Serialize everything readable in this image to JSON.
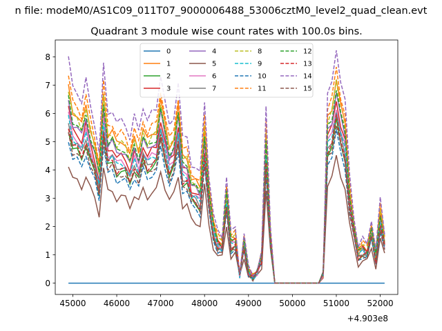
{
  "figure": {
    "suptitle": "n file: modeM0/AS1C09_011T07_9000006488_53006cztM0_level2_quad_clean.evt",
    "title": "Quadrant 3 module wise count rates with 100.0s bins."
  },
  "chart_data": {
    "type": "line",
    "title": "Quadrant 3 module wise count rates with 100.0s bins.",
    "xlabel": "",
    "ylabel": "",
    "x_offset_label": "+4.903e8",
    "xlim": [
      44600,
      52400
    ],
    "ylim": [
      -0.4,
      8.6
    ],
    "xticks": [
      45000,
      46000,
      47000,
      48000,
      49000,
      50000,
      51000,
      52000
    ],
    "yticks": [
      0,
      1,
      2,
      3,
      4,
      5,
      6,
      7,
      8
    ],
    "grid": false,
    "legend": {
      "position": "top-center",
      "columns": 4
    },
    "x": [
      44900,
      45000,
      45100,
      45200,
      45300,
      45400,
      45500,
      45600,
      45700,
      45800,
      45900,
      46000,
      46100,
      46200,
      46300,
      46400,
      46500,
      46600,
      46700,
      46800,
      46900,
      47000,
      47100,
      47200,
      47300,
      47400,
      47500,
      47600,
      47700,
      47800,
      47900,
      48000,
      48100,
      48200,
      48300,
      48400,
      48500,
      48600,
      48700,
      48800,
      48900,
      49000,
      49100,
      49200,
      49300,
      49400,
      49500,
      49600,
      49700,
      49800,
      49900,
      50000,
      50100,
      50200,
      50300,
      50400,
      50500,
      50600,
      50700,
      50800,
      50900,
      51000,
      51100,
      51200,
      51300,
      51400,
      51500,
      51600,
      51700,
      51800,
      51900,
      52000,
      52100
    ],
    "base_profile": [
      6.2,
      5.4,
      5.3,
      5.0,
      5.6,
      4.9,
      4.4,
      3.6,
      6.0,
      4.7,
      4.8,
      4.4,
      4.5,
      4.4,
      4.0,
      4.6,
      4.2,
      4.9,
      4.5,
      4.7,
      4.8,
      5.8,
      5.0,
      4.3,
      4.6,
      5.6,
      4.0,
      4.0,
      3.3,
      3.2,
      3.0,
      5.0,
      3.0,
      1.9,
      1.4,
      1.3,
      3.0,
      1.4,
      1.5,
      0.3,
      1.4,
      0.4,
      0.2,
      0.4,
      0.9,
      4.8,
      1.6,
      0.0,
      0.0,
      0.0,
      0.0,
      0.0,
      0.0,
      0.0,
      0.0,
      0.0,
      0.0,
      0.0,
      0.3,
      5.2,
      5.5,
      6.5,
      5.6,
      5.0,
      3.0,
      1.9,
      1.0,
      1.2,
      1.1,
      1.8,
      0.9,
      2.3,
      1.4
    ],
    "series": [
      {
        "name": "0",
        "color": "#1f77b4",
        "dash": "solid",
        "scale": 0.0
      },
      {
        "name": "1",
        "color": "#ff7f0e",
        "dash": "solid",
        "scale": 1.12
      },
      {
        "name": "2",
        "color": "#2ca02c",
        "dash": "solid",
        "scale": 0.88
      },
      {
        "name": "3",
        "color": "#d62728",
        "dash": "solid",
        "scale": 1.0
      },
      {
        "name": "4",
        "color": "#9467bd",
        "dash": "solid",
        "scale": 1.04
      },
      {
        "name": "5",
        "color": "#8c564b",
        "dash": "solid",
        "scale": 0.68
      },
      {
        "name": "6",
        "color": "#e377c2",
        "dash": "solid",
        "scale": 0.96
      },
      {
        "name": "7",
        "color": "#7f7f7f",
        "dash": "solid",
        "scale": 0.92
      },
      {
        "name": "8",
        "color": "#bcbd22",
        "dash": "dashed",
        "scale": 1.1
      },
      {
        "name": "9",
        "color": "#17becf",
        "dash": "dashed",
        "scale": 0.94
      },
      {
        "name": "10",
        "color": "#1f77b4",
        "dash": "dashed",
        "scale": 0.82
      },
      {
        "name": "11",
        "color": "#ff7f0e",
        "dash": "dashed",
        "scale": 1.18
      },
      {
        "name": "12",
        "color": "#2ca02c",
        "dash": "dashed",
        "scale": 1.06
      },
      {
        "name": "13",
        "color": "#d62728",
        "dash": "dashed",
        "scale": 0.9
      },
      {
        "name": "14",
        "color": "#9467bd",
        "dash": "dashed",
        "scale": 1.28
      },
      {
        "name": "15",
        "color": "#8c564b",
        "dash": "dashed",
        "scale": 0.86
      }
    ]
  }
}
